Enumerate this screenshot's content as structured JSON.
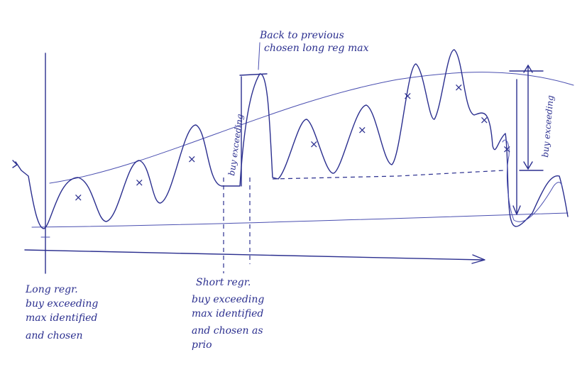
{
  "annotations": {
    "back_to_previous": [
      "Back to previous",
      "chosen long reg max"
    ],
    "vertical_left": "buy exceeding",
    "vertical_right": "buy exceeding",
    "long_regr": [
      "Long regr.",
      "buy exceeding",
      "max identified",
      "and chosen"
    ],
    "short_regr": [
      "Short regr.",
      "buy exceeding",
      "max identified",
      "and chosen as",
      "prio"
    ]
  },
  "markers": {
    "x_symbol": "×"
  },
  "colors": {
    "ink": "#2b2f8f",
    "paper": "#ffffff"
  }
}
